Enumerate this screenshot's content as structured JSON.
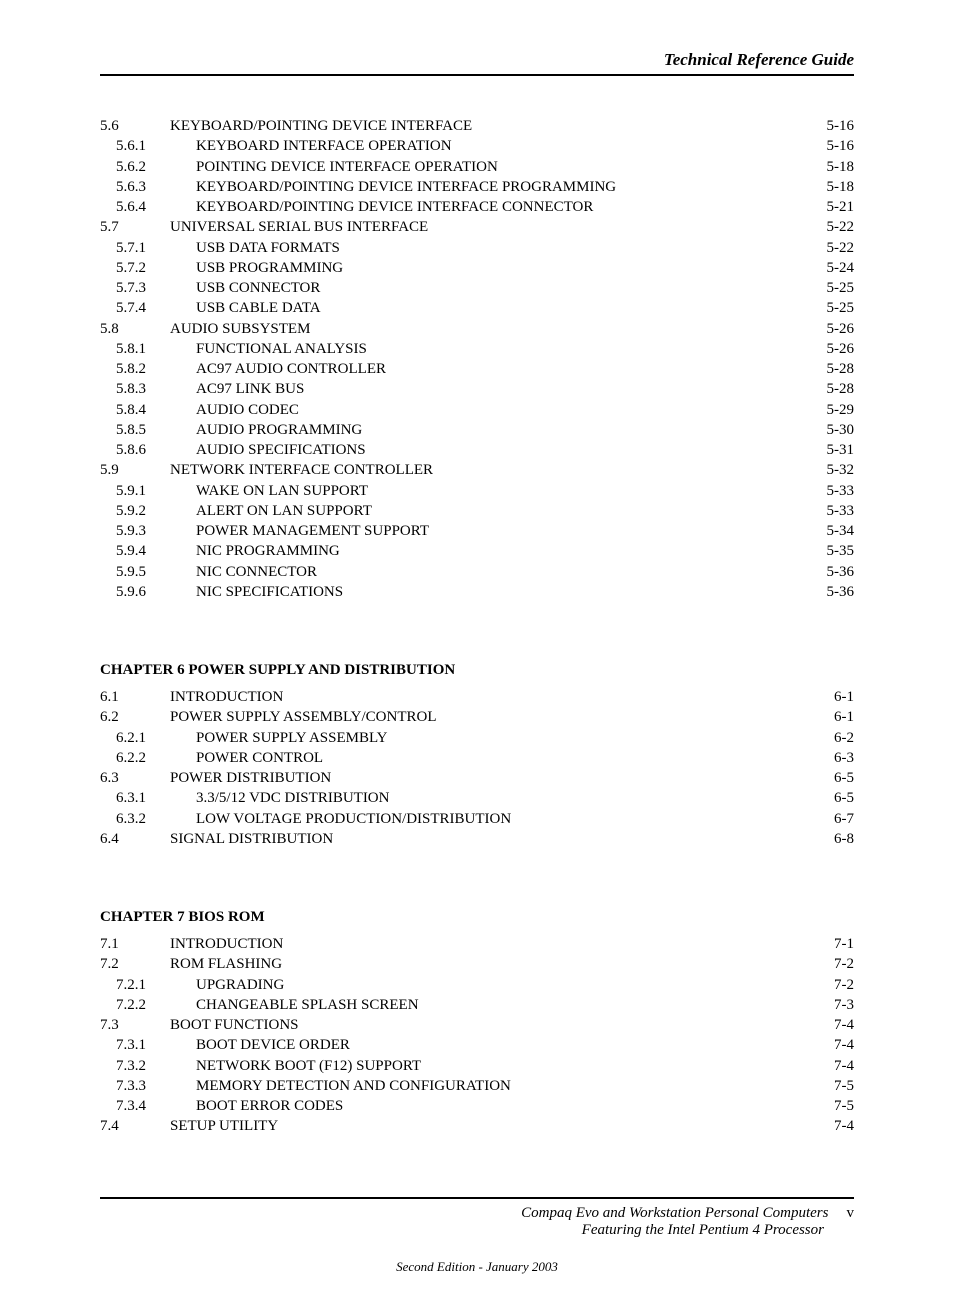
{
  "header": {
    "title": "Technical Reference Guide"
  },
  "toc_cont": [
    {
      "lvl": 1,
      "num": "5.6",
      "title": "KEYBOARD/POINTING DEVICE INTERFACE",
      "page": "5-16"
    },
    {
      "lvl": 2,
      "num": "5.6.1",
      "title": "KEYBOARD INTERFACE OPERATION",
      "page": "5-16"
    },
    {
      "lvl": 2,
      "num": "5.6.2",
      "title": "POINTING DEVICE INTERFACE OPERATION",
      "page": "5-18"
    },
    {
      "lvl": 2,
      "num": "5.6.3",
      "title": "KEYBOARD/POINTING DEVICE  INTERFACE PROGRAMMING",
      "page": "5-18"
    },
    {
      "lvl": 2,
      "num": "5.6.4",
      "title": "KEYBOARD/POINTING DEVICE INTERFACE CONNECTOR",
      "page": "5-21"
    },
    {
      "lvl": 1,
      "num": "5.7",
      "title": "UNIVERSAL SERIAL BUS INTERFACE",
      "page": "5-22"
    },
    {
      "lvl": 2,
      "num": "5.7.1",
      "title": "USB DATA FORMATS",
      "page": "5-22"
    },
    {
      "lvl": 2,
      "num": "5.7.2",
      "title": "USB PROGRAMMING",
      "page": "5-24"
    },
    {
      "lvl": 2,
      "num": "5.7.3",
      "title": "USB CONNECTOR",
      "page": "5-25"
    },
    {
      "lvl": 2,
      "num": "5.7.4",
      "title": "USB CABLE DATA",
      "page": "5-25"
    },
    {
      "lvl": 1,
      "num": "5.8",
      "title": "AUDIO SUBSYSTEM",
      "page": "5-26"
    },
    {
      "lvl": 2,
      "num": "5.8.1",
      "title": "FUNCTIONAL ANALYSIS",
      "page": "5-26"
    },
    {
      "lvl": 2,
      "num": "5.8.2",
      "title": "AC97 AUDIO CONTROLLER",
      "page": "5-28"
    },
    {
      "lvl": 2,
      "num": "5.8.3",
      "title": "AC97 LINK BUS",
      "page": "5-28"
    },
    {
      "lvl": 2,
      "num": "5.8.4",
      "title": "AUDIO CODEC",
      "page": "5-29"
    },
    {
      "lvl": 2,
      "num": "5.8.5",
      "title": "AUDIO PROGRAMMING",
      "page": "5-30"
    },
    {
      "lvl": 2,
      "num": "5.8.6",
      "title": "AUDIO SPECIFICATIONS",
      "page": "5-31"
    },
    {
      "lvl": 1,
      "num": "5.9",
      "title": "NETWORK INTERFACE CONTROLLER",
      "page": "5-32"
    },
    {
      "lvl": 2,
      "num": "5.9.1",
      "title": "WAKE ON LAN SUPPORT",
      "page": "5-33"
    },
    {
      "lvl": 2,
      "num": "5.9.2",
      "title": "ALERT ON LAN SUPPORT",
      "page": "5-33"
    },
    {
      "lvl": 2,
      "num": "5.9.3",
      "title": "POWER MANAGEMENT SUPPORT",
      "page": "5-34"
    },
    {
      "lvl": 2,
      "num": "5.9.4",
      "title": "NIC PROGRAMMING",
      "page": "5-35"
    },
    {
      "lvl": 2,
      "num": "5.9.5",
      "title": "NIC CONNECTOR",
      "page": "5-36"
    },
    {
      "lvl": 2,
      "num": "5.9.6",
      "title": "NIC SPECIFICATIONS",
      "page": "5-36"
    }
  ],
  "chapter6": {
    "heading": "CHAPTER 6  POWER SUPPLY AND DISTRIBUTION",
    "entries": [
      {
        "lvl": 1,
        "num": "6.1",
        "title": "INTRODUCTION",
        "page": "6-1"
      },
      {
        "lvl": 1,
        "num": "6.2",
        "title": "POWER SUPPLY ASSEMBLY/CONTROL",
        "page": "6-1"
      },
      {
        "lvl": 2,
        "num": "6.2.1",
        "title": "POWER SUPPLY ASSEMBLY",
        "page": "6-2"
      },
      {
        "lvl": 2,
        "num": "6.2.2",
        "title": "POWER CONTROL",
        "page": "6-3"
      },
      {
        "lvl": 1,
        "num": "6.3",
        "title": "POWER DISTRIBUTION",
        "page": "6-5"
      },
      {
        "lvl": 2,
        "num": "6.3.1",
        "title": "3.3/5/12 VDC DISTRIBUTION",
        "page": "6-5"
      },
      {
        "lvl": 2,
        "num": "6.3.2",
        "title": "LOW VOLTAGE PRODUCTION/DISTRIBUTION",
        "page": "6-7"
      },
      {
        "lvl": 1,
        "num": "6.4",
        "title": "SIGNAL DISTRIBUTION",
        "page": "6-8"
      }
    ]
  },
  "chapter7": {
    "heading": "CHAPTER 7  BIOS ROM",
    "entries": [
      {
        "lvl": 1,
        "num": "7.1",
        "title": "INTRODUCTION",
        "page": "7-1"
      },
      {
        "lvl": 1,
        "num": "7.2",
        "title": "ROM FLASHING",
        "page": "7-2"
      },
      {
        "lvl": 2,
        "num": "7.2.1",
        "title": "UPGRADING",
        "page": "7-2"
      },
      {
        "lvl": 2,
        "num": "7.2.2",
        "title": "CHANGEABLE SPLASH SCREEN",
        "page": "7-3"
      },
      {
        "lvl": 1,
        "num": "7.3",
        "title": "BOOT FUNCTIONS",
        "page": "7-4"
      },
      {
        "lvl": 2,
        "num": "7.3.1",
        "title": "BOOT DEVICE ORDER",
        "page": "7-4"
      },
      {
        "lvl": 2,
        "num": "7.3.2",
        "title": "NETWORK BOOT (F12) SUPPORT",
        "page": "7-4"
      },
      {
        "lvl": 2,
        "num": "7.3.3",
        "title": "MEMORY DETECTION AND CONFIGURATION",
        "page": "7-5"
      },
      {
        "lvl": 2,
        "num": "7.3.4",
        "title": "BOOT ERROR CODES",
        "page": "7-5"
      },
      {
        "lvl": 1,
        "num": "7.4",
        "title": "SETUP UTILITY",
        "page": "7-4"
      }
    ]
  },
  "footer": {
    "line1": "Compaq Evo and Workstation Personal Computers",
    "line2": "Featuring the Intel Pentium 4 Processor",
    "pagenum": "v",
    "edition": "Second Edition - January 2003"
  }
}
